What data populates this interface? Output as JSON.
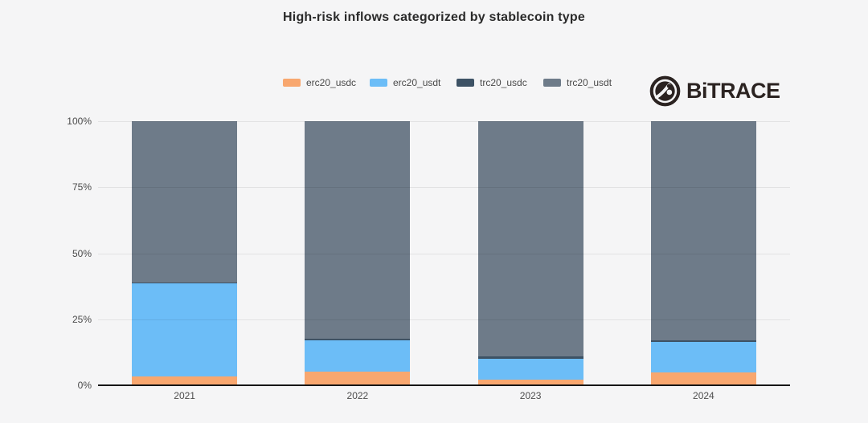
{
  "title": "High-risk inflows categorized by stablecoin type",
  "logo": {
    "text": "BiTRACE",
    "color": "#2b2321"
  },
  "legend": {
    "items": [
      {
        "label": "erc20_usdc",
        "color": "#F8A76F"
      },
      {
        "label": "erc20_usdt",
        "color": "#6CBDF7"
      },
      {
        "label": "trc20_usdc",
        "color": "#3D5265"
      },
      {
        "label": "trc20_usdt",
        "color": "#6E7B89"
      }
    ]
  },
  "chart_data": {
    "type": "bar",
    "stacked": true,
    "title": "High-risk inflows categorized by stablecoin type",
    "categories": [
      "2021",
      "2022",
      "2023",
      "2024"
    ],
    "series": [
      {
        "name": "erc20_usdc",
        "color": "#F8A76F",
        "values": [
          3.5,
          5.2,
          2.1,
          4.9
        ]
      },
      {
        "name": "erc20_usdt",
        "color": "#6CBDF7",
        "values": [
          35.0,
          11.9,
          8.0,
          11.6
        ]
      },
      {
        "name": "trc20_usdc",
        "color": "#3D5265",
        "values": [
          0.4,
          0.4,
          1.0,
          0.4
        ]
      },
      {
        "name": "trc20_usdt",
        "color": "#6E7B89",
        "values": [
          61.1,
          82.5,
          88.9,
          83.1
        ]
      }
    ],
    "xlabel": "",
    "ylabel": "",
    "ylim": [
      0,
      100
    ],
    "y_ticks": [
      "0%",
      "25%",
      "50%",
      "75%",
      "100%"
    ],
    "grid": true,
    "legend_position": "top",
    "unit": "percent"
  },
  "colors": {
    "background": "#f5f5f6",
    "gridline": "#e4e4e5",
    "axis": "#161616",
    "title_text": "#2a2a2a",
    "tick_text": "#4a4a4a"
  }
}
